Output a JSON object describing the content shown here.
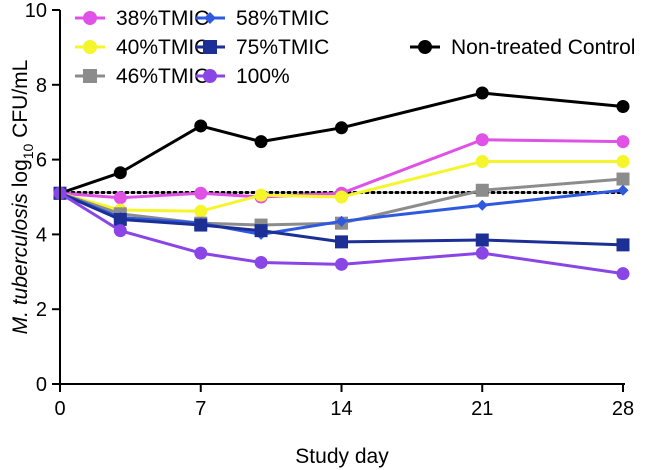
{
  "chart_data": {
    "type": "line",
    "title": "",
    "xlabel": "Study day",
    "ylabel": {
      "italic": "M. tuberculosis",
      "prefix": " log",
      "subscript": "10",
      "suffix": " CFU/mL"
    },
    "xlim": [
      0,
      28
    ],
    "ylim": [
      0,
      10
    ],
    "xticks": [
      0,
      7,
      14,
      21,
      28
    ],
    "yticks": [
      0,
      2,
      4,
      6,
      8,
      10
    ],
    "grid": false,
    "legend_position": "top",
    "reference_line": {
      "style": "dotted",
      "y": 5.12,
      "color": "#000000"
    },
    "series": [
      {
        "name": "Non-treated Control",
        "color": "#000000",
        "marker": "circle",
        "x": [
          0,
          3,
          7,
          10,
          14,
          21,
          28
        ],
        "y": [
          5.1,
          5.65,
          6.9,
          6.48,
          6.85,
          7.78,
          7.42
        ]
      },
      {
        "name": "38%TMIC",
        "color": "#e052e6",
        "marker": "circle",
        "x": [
          0,
          3,
          7,
          10,
          14,
          21,
          28
        ],
        "y": [
          5.1,
          4.98,
          5.1,
          5.0,
          5.1,
          6.53,
          6.48
        ]
      },
      {
        "name": "40%TMIC",
        "color": "#f5f52c",
        "marker": "circle",
        "x": [
          0,
          3,
          7,
          10,
          14,
          21,
          28
        ],
        "y": [
          5.1,
          4.65,
          4.62,
          5.05,
          5.0,
          5.95,
          5.95
        ]
      },
      {
        "name": "46%TMIC",
        "color": "#8c8c8c",
        "marker": "square",
        "x": [
          0,
          3,
          7,
          10,
          14,
          21,
          28
        ],
        "y": [
          5.1,
          4.55,
          4.3,
          4.25,
          4.3,
          5.18,
          5.48
        ]
      },
      {
        "name": "58%TMIC",
        "color": "#2f5ae0",
        "marker": "diamond",
        "x": [
          0,
          3,
          7,
          10,
          14,
          21,
          28
        ],
        "y": [
          5.1,
          4.45,
          4.3,
          4.0,
          4.35,
          4.78,
          5.18
        ]
      },
      {
        "name": "75%TMIC",
        "color": "#1c2f94",
        "marker": "square",
        "x": [
          0,
          3,
          7,
          10,
          14,
          21,
          28
        ],
        "y": [
          5.1,
          4.4,
          4.25,
          4.1,
          3.8,
          3.85,
          3.72
        ]
      },
      {
        "name": "100%",
        "color": "#8a45e6",
        "marker": "circle",
        "x": [
          0,
          3,
          7,
          10,
          14,
          21,
          28
        ],
        "y": [
          5.1,
          4.1,
          3.5,
          3.25,
          3.2,
          3.5,
          2.95
        ]
      }
    ],
    "legend_entries": [
      {
        "name": "38%TMIC",
        "color": "#e052e6",
        "marker": "circle"
      },
      {
        "name": "58%TMIC",
        "color": "#2f5ae0",
        "marker": "diamond"
      },
      {
        "name": "40%TMIC",
        "color": "#f5f52c",
        "marker": "circle"
      },
      {
        "name": "75%TMIC",
        "color": "#1c2f94",
        "marker": "square"
      },
      {
        "name": "Non-treated Control",
        "color": "#000000",
        "marker": "circle"
      },
      {
        "name": "46%TMIC",
        "color": "#8c8c8c",
        "marker": "square"
      },
      {
        "name": "100%",
        "color": "#8a45e6",
        "marker": "circle"
      }
    ]
  }
}
